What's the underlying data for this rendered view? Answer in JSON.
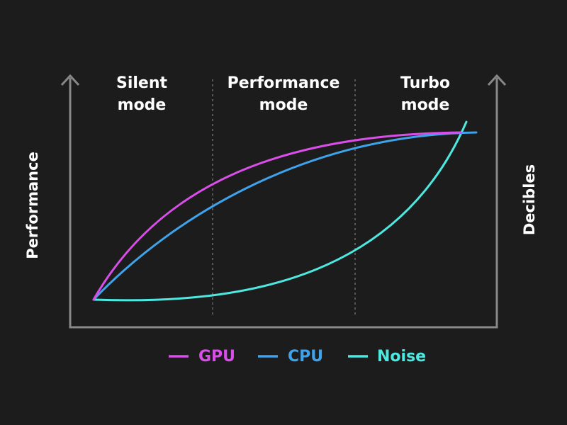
{
  "modes": [
    [
      "Silent",
      "mode"
    ],
    [
      "Performance",
      "mode"
    ],
    [
      "Turbo",
      "mode"
    ]
  ],
  "left_axis_label": "Performance",
  "right_axis_label": "Decibles",
  "legend": [
    "GPU",
    "CPU",
    "Noise"
  ]
}
